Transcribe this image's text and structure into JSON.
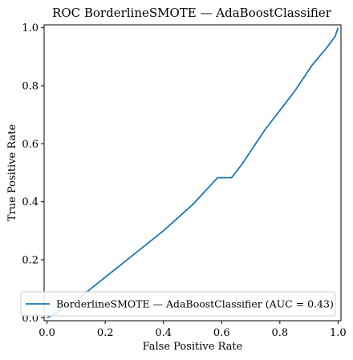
{
  "chart_data": {
    "type": "line",
    "title": "ROC BorderlineSMOTE — AdaBoostClassifier",
    "xlabel": "False Positive Rate",
    "ylabel": "True Positive Rate",
    "xlim": [
      0,
      1
    ],
    "ylim": [
      0,
      1
    ],
    "xticks": [
      "0.0",
      "0.2",
      "0.4",
      "0.6",
      "0.8",
      "1.0"
    ],
    "yticks": [
      "0.0",
      "0.2",
      "0.4",
      "0.6",
      "0.8",
      "1.0"
    ],
    "grid": false,
    "legend_position": "lower-right",
    "series": [
      {
        "name": "BorderlineSMOTE — AdaBoostClassifier (AUC = 0.43)",
        "color": "#1f77b4",
        "x": [
          0.0,
          0.02,
          0.1,
          0.2,
          0.3,
          0.4,
          0.5,
          0.586,
          0.634,
          0.67,
          0.75,
          0.85,
          0.91,
          0.96,
          0.99,
          1.0
        ],
        "y": [
          0.0,
          0.01,
          0.06,
          0.14,
          0.22,
          0.3,
          0.39,
          0.483,
          0.483,
          0.53,
          0.65,
          0.78,
          0.87,
          0.93,
          0.97,
          1.0
        ]
      }
    ]
  }
}
